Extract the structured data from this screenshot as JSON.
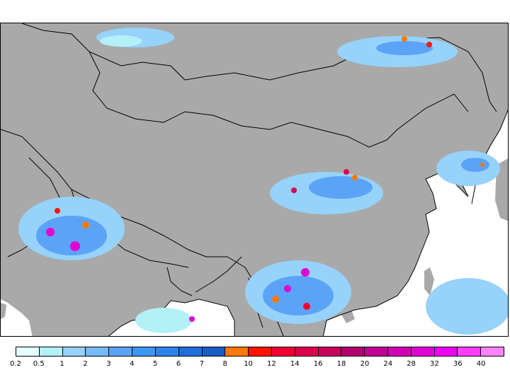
{
  "map": {
    "land_color": "#a9a9a9",
    "sea_color": "#ffffff",
    "border_color": "#000000"
  },
  "legend": {
    "colors": [
      "#e6ffff",
      "#b4f0f8",
      "#96d2fa",
      "#78b9fa",
      "#5ba3f7",
      "#3c96f5",
      "#2f82ec",
      "#1e6edc",
      "#1a5cc6",
      "#ff7800",
      "#ff1400",
      "#f00032",
      "#dc004b",
      "#c8005a",
      "#b4006e",
      "#c30096",
      "#d200b4",
      "#e100d2",
      "#f000f0",
      "#ff3cff",
      "#ff82ff"
    ],
    "labels": [
      "0.2",
      "0.5",
      "1",
      "2",
      "3",
      "4",
      "5",
      "6",
      "7",
      "8",
      "10",
      "12",
      "14",
      "16",
      "18",
      "20",
      "24",
      "28",
      "32",
      "36",
      "40"
    ]
  }
}
